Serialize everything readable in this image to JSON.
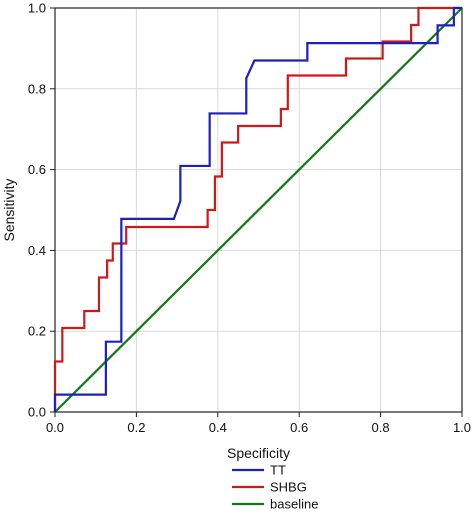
{
  "chart_data": {
    "type": "line",
    "title": "",
    "xlabel": "Specificity",
    "ylabel": "Sensitivity",
    "xlim": [
      0,
      1
    ],
    "ylim": [
      0,
      1
    ],
    "xticks": [
      0.0,
      0.2,
      0.4,
      0.6,
      0.8,
      1.0
    ],
    "yticks": [
      0.0,
      0.2,
      0.4,
      0.6,
      0.8,
      1.0
    ],
    "xtick_labels": [
      "0.0",
      "0.2",
      "0.4",
      "0.6",
      "0.8",
      "1.0"
    ],
    "ytick_labels": [
      "0.0",
      "0.2",
      "0.4",
      "0.6",
      "0.8",
      "1.0"
    ],
    "grid": true,
    "legend_position": "bottom-center",
    "series": [
      {
        "name": "TT",
        "color": "#1f1fbf",
        "points": [
          [
            0,
            0
          ],
          [
            0,
            0.043
          ],
          [
            0.125,
            0.043
          ],
          [
            0.125,
            0.174
          ],
          [
            0.163,
            0.174
          ],
          [
            0.163,
            0.478
          ],
          [
            0.292,
            0.478
          ],
          [
            0.308,
            0.522
          ],
          [
            0.308,
            0.609
          ],
          [
            0.38,
            0.609
          ],
          [
            0.38,
            0.739
          ],
          [
            0.47,
            0.739
          ],
          [
            0.47,
            0.826
          ],
          [
            0.49,
            0.87
          ],
          [
            0.62,
            0.87
          ],
          [
            0.62,
            0.913
          ],
          [
            0.94,
            0.913
          ],
          [
            0.94,
            0.957
          ],
          [
            0.98,
            0.957
          ],
          [
            0.98,
            1.0
          ],
          [
            1.0,
            1.0
          ]
        ]
      },
      {
        "name": "SHBG",
        "color": "#cc1a1a",
        "points": [
          [
            0,
            0
          ],
          [
            0,
            0.125
          ],
          [
            0.018,
            0.125
          ],
          [
            0.018,
            0.208
          ],
          [
            0.072,
            0.208
          ],
          [
            0.072,
            0.25
          ],
          [
            0.108,
            0.25
          ],
          [
            0.108,
            0.333
          ],
          [
            0.128,
            0.333
          ],
          [
            0.128,
            0.375
          ],
          [
            0.142,
            0.375
          ],
          [
            0.142,
            0.417
          ],
          [
            0.175,
            0.417
          ],
          [
            0.175,
            0.458
          ],
          [
            0.375,
            0.458
          ],
          [
            0.375,
            0.5
          ],
          [
            0.393,
            0.5
          ],
          [
            0.393,
            0.583
          ],
          [
            0.41,
            0.583
          ],
          [
            0.41,
            0.667
          ],
          [
            0.45,
            0.667
          ],
          [
            0.45,
            0.708
          ],
          [
            0.555,
            0.708
          ],
          [
            0.555,
            0.75
          ],
          [
            0.572,
            0.75
          ],
          [
            0.572,
            0.833
          ],
          [
            0.715,
            0.833
          ],
          [
            0.715,
            0.875
          ],
          [
            0.805,
            0.875
          ],
          [
            0.805,
            0.917
          ],
          [
            0.875,
            0.917
          ],
          [
            0.875,
            0.958
          ],
          [
            0.893,
            0.958
          ],
          [
            0.893,
            1.0
          ],
          [
            1.0,
            1.0
          ]
        ]
      },
      {
        "name": "baseline",
        "color": "#117711",
        "points": [
          [
            0,
            0
          ],
          [
            1,
            1
          ]
        ]
      }
    ]
  }
}
